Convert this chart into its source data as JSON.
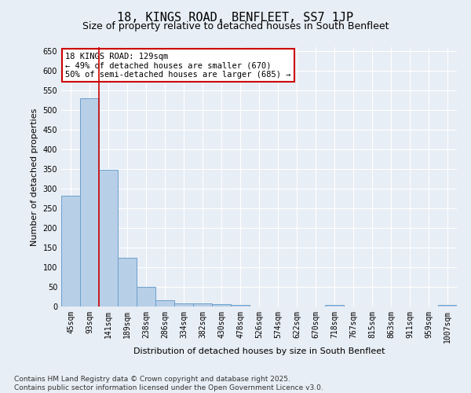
{
  "title1": "18, KINGS ROAD, BENFLEET, SS7 1JP",
  "title2": "Size of property relative to detached houses in South Benfleet",
  "xlabel": "Distribution of detached houses by size in South Benfleet",
  "ylabel": "Number of detached properties",
  "categories": [
    "45sqm",
    "93sqm",
    "141sqm",
    "189sqm",
    "238sqm",
    "286sqm",
    "334sqm",
    "382sqm",
    "430sqm",
    "478sqm",
    "526sqm",
    "574sqm",
    "622sqm",
    "670sqm",
    "718sqm",
    "767sqm",
    "815sqm",
    "863sqm",
    "911sqm",
    "959sqm",
    "1007sqm"
  ],
  "values": [
    283,
    530,
    348,
    125,
    50,
    16,
    9,
    9,
    7,
    4,
    0,
    0,
    0,
    0,
    5,
    0,
    0,
    0,
    0,
    0,
    5
  ],
  "bar_color": "#b8cfe8",
  "bar_edge_color": "#6aa0cc",
  "vline_x": 1.5,
  "vline_color": "#cc0000",
  "annotation_text": "18 KINGS ROAD: 129sqm\n← 49% of detached houses are smaller (670)\n50% of semi-detached houses are larger (685) →",
  "annotation_box_color": "white",
  "annotation_box_edge_color": "#cc0000",
  "ylim": [
    0,
    660
  ],
  "yticks": [
    0,
    50,
    100,
    150,
    200,
    250,
    300,
    350,
    400,
    450,
    500,
    550,
    600,
    650
  ],
  "footnote": "Contains HM Land Registry data © Crown copyright and database right 2025.\nContains public sector information licensed under the Open Government Licence v3.0.",
  "bg_color": "#e8eef5",
  "plot_bg_color": "#e8eef5",
  "grid_color": "white",
  "title_fontsize": 11,
  "subtitle_fontsize": 9,
  "axis_fontsize": 8,
  "tick_fontsize": 7,
  "annotation_fontsize": 7.5,
  "footnote_fontsize": 6.5
}
